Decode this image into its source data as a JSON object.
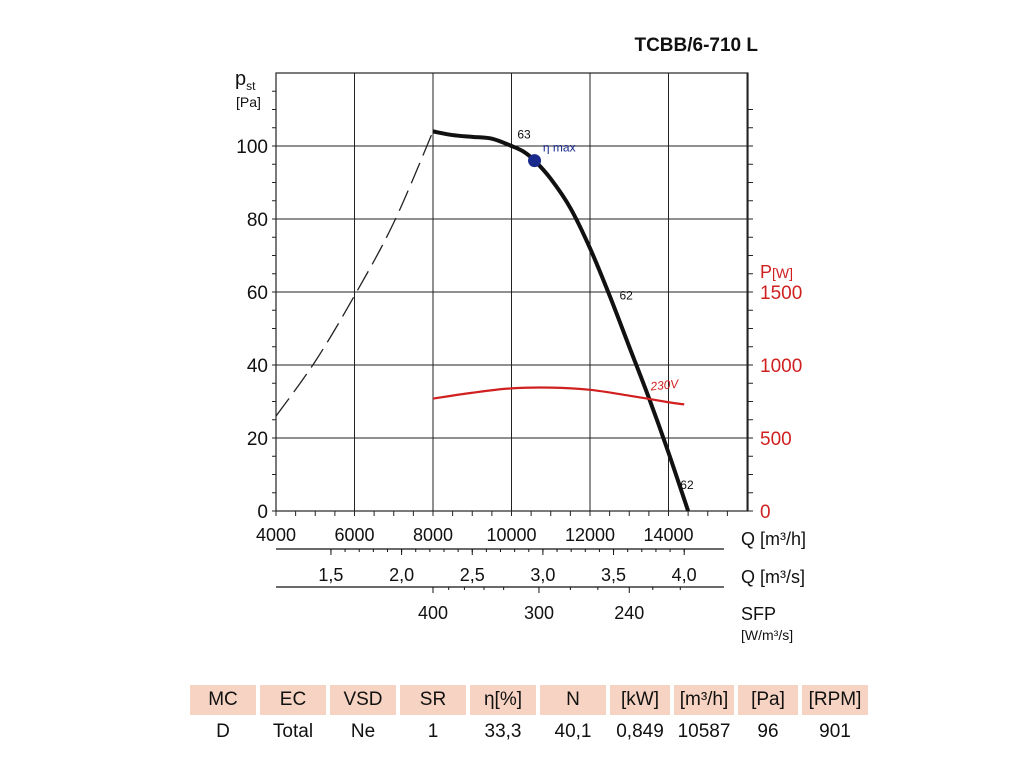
{
  "model": "TCBB/6-710 L",
  "colors": {
    "pressure_curve": "#111111",
    "power_curve": "#d02020",
    "eta_point": "#1a2a8c",
    "grid": "#222222",
    "table_header": "#f6d3c2"
  },
  "chart_data": {
    "type": "line",
    "title": "TCBB/6-710 L",
    "xlabel": "Q [m³/h]",
    "xlim": [
      4000,
      15500
    ],
    "xticks": [
      4000,
      6000,
      8000,
      10000,
      12000,
      14000
    ],
    "grid_x": [
      4000,
      6000,
      8000,
      10000,
      12000,
      14000,
      16000
    ],
    "y_left": {
      "label_main": "p",
      "label_sub": "st",
      "unit": "[Pa]",
      "lim": [
        0,
        120
      ],
      "ticks": [
        0,
        20,
        40,
        60,
        80,
        100
      ]
    },
    "y_right": {
      "label_main": "P",
      "unit": "[W]",
      "lim": [
        0,
        3000
      ],
      "ticks": [
        0,
        500,
        1000,
        1500
      ]
    },
    "secondary_axes": [
      {
        "label": "Q [m³/s]",
        "ticks": [
          "1,5",
          "2,0",
          "2,5",
          "3,0",
          "3,5",
          "4,0"
        ],
        "values_q_m3h": [
          5400,
          7200,
          9000,
          10800,
          12600,
          14400
        ]
      },
      {
        "label": "SFP",
        "unit": "[W/m³/s]",
        "ticks": [
          "400",
          "300",
          "240"
        ],
        "values_q_m3h": [
          8000,
          10700,
          13000
        ]
      }
    ],
    "series": [
      {
        "name": "static pressure",
        "axis": "left",
        "style": "solid",
        "x": [
          8000,
          8500,
          9000,
          9500,
          10000,
          10300,
          10587,
          11000,
          11500,
          12000,
          12500,
          13000,
          13500,
          14000,
          14500
        ],
        "y": [
          104,
          103,
          102.5,
          102,
          100,
          98.5,
          96,
          91,
          83,
          72,
          59,
          45,
          31,
          16,
          0
        ]
      },
      {
        "name": "unstable region",
        "axis": "left",
        "style": "dashed",
        "x": [
          4000,
          5000,
          6000,
          7000,
          8000
        ],
        "y": [
          26,
          41,
          59,
          79,
          104
        ]
      },
      {
        "name": "230V",
        "axis": "right",
        "style": "solid",
        "x": [
          8000,
          9000,
          10000,
          11000,
          12000,
          13000,
          14000,
          14400
        ],
        "y": [
          770,
          810,
          840,
          845,
          830,
          790,
          745,
          730
        ]
      }
    ],
    "annotations": [
      {
        "text": "63",
        "x": 10150,
        "y": 102
      },
      {
        "text": "η max",
        "x": 10800,
        "y": 98.5
      },
      {
        "text": "62",
        "x": 12750,
        "y": 58
      },
      {
        "text": "62",
        "x": 14300,
        "y": 6
      },
      {
        "text": "230V",
        "x": 13550,
        "y": 33
      }
    ],
    "eta_max_point": {
      "x": 10587,
      "y": 96
    }
  },
  "table": {
    "headers": [
      "MC",
      "EC",
      "VSD",
      "SR",
      "η[%]",
      "N",
      "[kW]",
      "[m³/h]",
      "[Pa]",
      "[RPM]"
    ],
    "row": [
      "D",
      "Total",
      "Ne",
      "1",
      "33,3",
      "40,1",
      "0,849",
      "10587",
      "96",
      "901"
    ]
  }
}
